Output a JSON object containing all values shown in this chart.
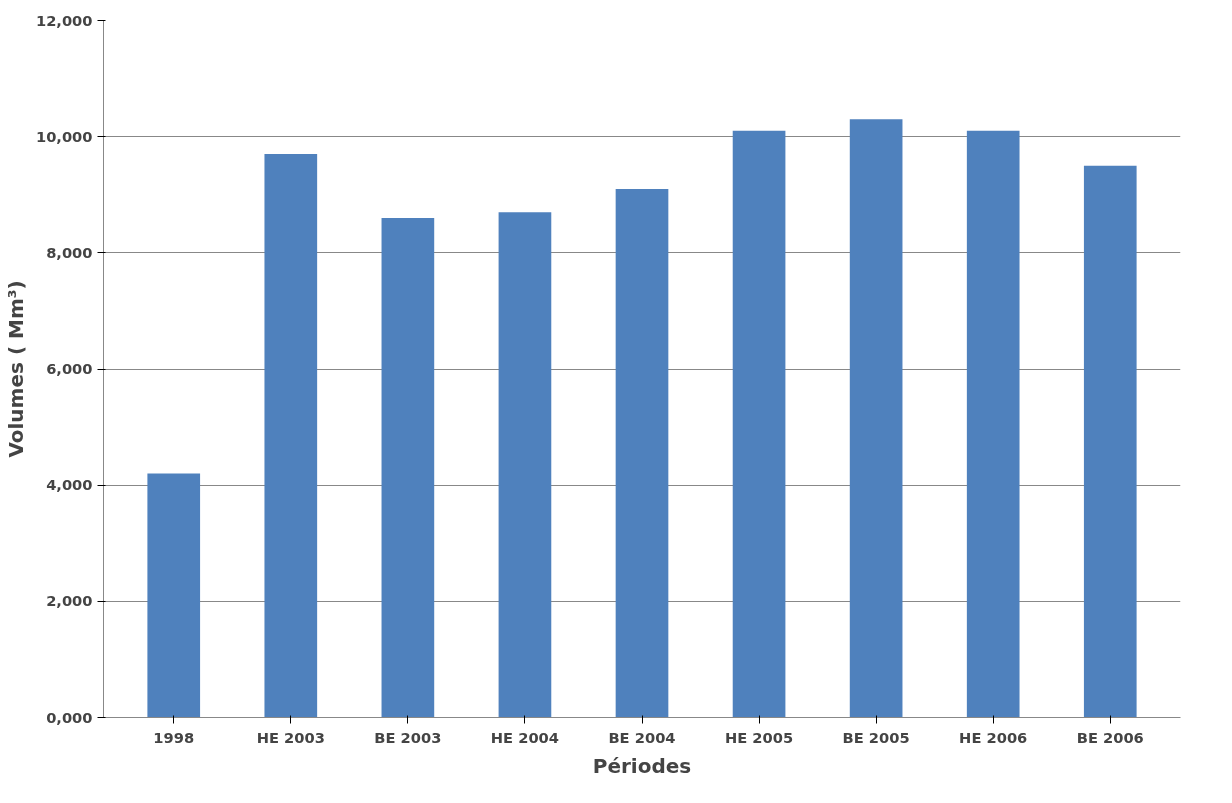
{
  "chart_data": {
    "type": "bar",
    "xlabel": "Périodes",
    "ylabel": "Volumes ( Mm³)",
    "categories": [
      "1998",
      "HE 2003",
      "BE 2003",
      "HE 2004",
      "BE 2004",
      "HE 2005",
      "BE 2005",
      "HE 2006",
      "BE 2006"
    ],
    "values": [
      4200,
      9700,
      8600,
      8700,
      9100,
      10100,
      10300,
      10100,
      9500
    ],
    "color": "#4f81bd",
    "ylim": [
      0,
      12000
    ],
    "yticks": [
      {
        "value": 0,
        "label": "0,000"
      },
      {
        "value": 2000,
        "label": "2,000"
      },
      {
        "value": 4000,
        "label": "4,000"
      },
      {
        "value": 6000,
        "label": "6,000"
      },
      {
        "value": 8000,
        "label": "8,000"
      },
      {
        "value": 10000,
        "label": "10,000"
      },
      {
        "value": 12000,
        "label": "12,000"
      }
    ],
    "grid": "y"
  }
}
